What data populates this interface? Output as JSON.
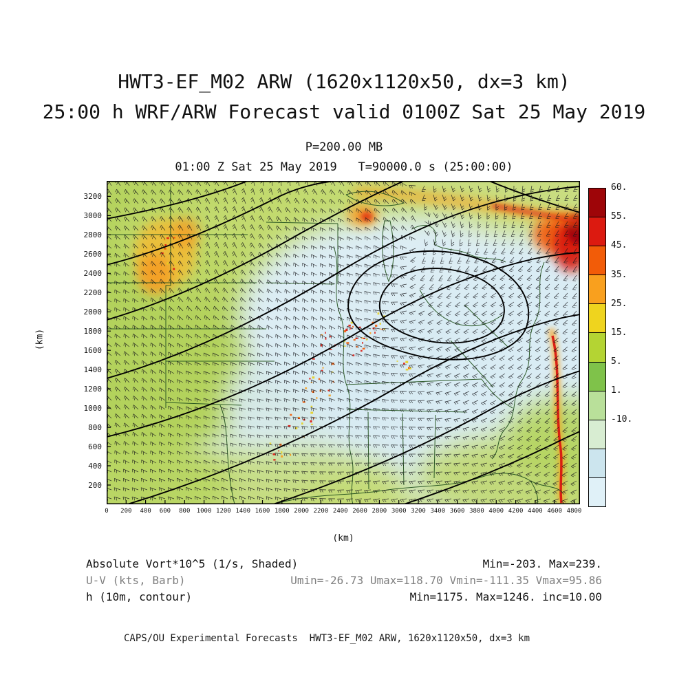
{
  "header": {
    "title_line1": "HWT3-EF_M02 ARW (1620x1120x50, dx=3 km)",
    "title_line2": "25:00 h WRF/ARW Forecast valid 0100Z Sat 25 May 2019",
    "pressure_level": "P=200.00 MB",
    "valid_time": "01:00 Z Sat 25 May 2019   T=90000.0 s (25:00:00)"
  },
  "chart_data": {
    "type": "heatmap",
    "title": "HWT3-EF_M02 ARW (1620x1120x50, dx=3 km)",
    "subtitle": "25:00 h WRF/ARW Forecast valid 0100Z Sat 25 May 2019",
    "pressure_level_mb": 200.0,
    "valid": "01:00 Z Sat 25 May 2019",
    "model_time": "T=90000.0 s (25:00:00)",
    "shaded_field": {
      "name": "Absolute Vort*10^5 (1/s, Shaded)",
      "min": -203,
      "max": 239
    },
    "wind_field": {
      "name": "U-V (kts, Barb)",
      "umin": -26.73,
      "umax": 118.7,
      "vmin": -111.35,
      "vmax": 95.86
    },
    "contour_field": {
      "name": "h (10m, contour)",
      "min": 1175,
      "max": 1246,
      "inc": 10.0
    },
    "x_axis": {
      "label": "(km)",
      "range": [
        0,
        4860
      ],
      "ticks": [
        "0",
        "200",
        "400",
        "600",
        "800",
        "1000",
        "1200",
        "1400",
        "1600",
        "1800",
        "2000",
        "2200",
        "2400",
        "2600",
        "2800",
        "3000",
        "3200",
        "3400",
        "3600",
        "3800",
        "4000",
        "4200",
        "4400",
        "4600",
        "4800"
      ]
    },
    "y_axis": {
      "label": "(km)",
      "range": [
        0,
        3360
      ],
      "ticks_top_to_bottom": [
        "3200",
        "3000",
        "2800",
        "2600",
        "2400",
        "2200",
        "2000",
        "1800",
        "1600",
        "1400",
        "1200",
        "1000",
        "800",
        "600",
        "400",
        "200"
      ]
    },
    "colorbar": {
      "position": "right",
      "box_colors_top_to_bottom": [
        "#9e0508",
        "#dc1a10",
        "#f25c08",
        "#f9a01e",
        "#efd41e",
        "#b4d433",
        "#7fc24a",
        "#b9e09a",
        "#d8edd2",
        "#cce5ee",
        "#e0f1f8"
      ],
      "boundary_labels_top_to_bottom": [
        "60.",
        "55.",
        "45.",
        "35.",
        "25.",
        "15.",
        "5.",
        "1.",
        "-10."
      ],
      "labeled_levels": [
        60,
        55,
        45,
        35,
        25,
        15,
        5,
        1,
        -10
      ]
    },
    "map_overlays": [
      "state boundaries (dark green)",
      "height contours (black)",
      "wind barbs (black)"
    ]
  },
  "legend": {
    "rows": [
      {
        "label": "Absolute Vort*10^5 (1/s, Shaded)",
        "stats": "Min=-203. Max=239."
      },
      {
        "label": "U-V (kts, Barb)",
        "stats": "Umin=-26.73 Umax=118.70 Vmin=-111.35 Vmax=95.86"
      },
      {
        "label": "h (10m, contour)",
        "stats": "Min=1175. Max=1246. inc=10.00"
      }
    ]
  },
  "footer": {
    "credit": "CAPS/OU Experimental Forecasts  HWT3-EF_M02 ARW, 1620x1120x50, dx=3 km"
  }
}
